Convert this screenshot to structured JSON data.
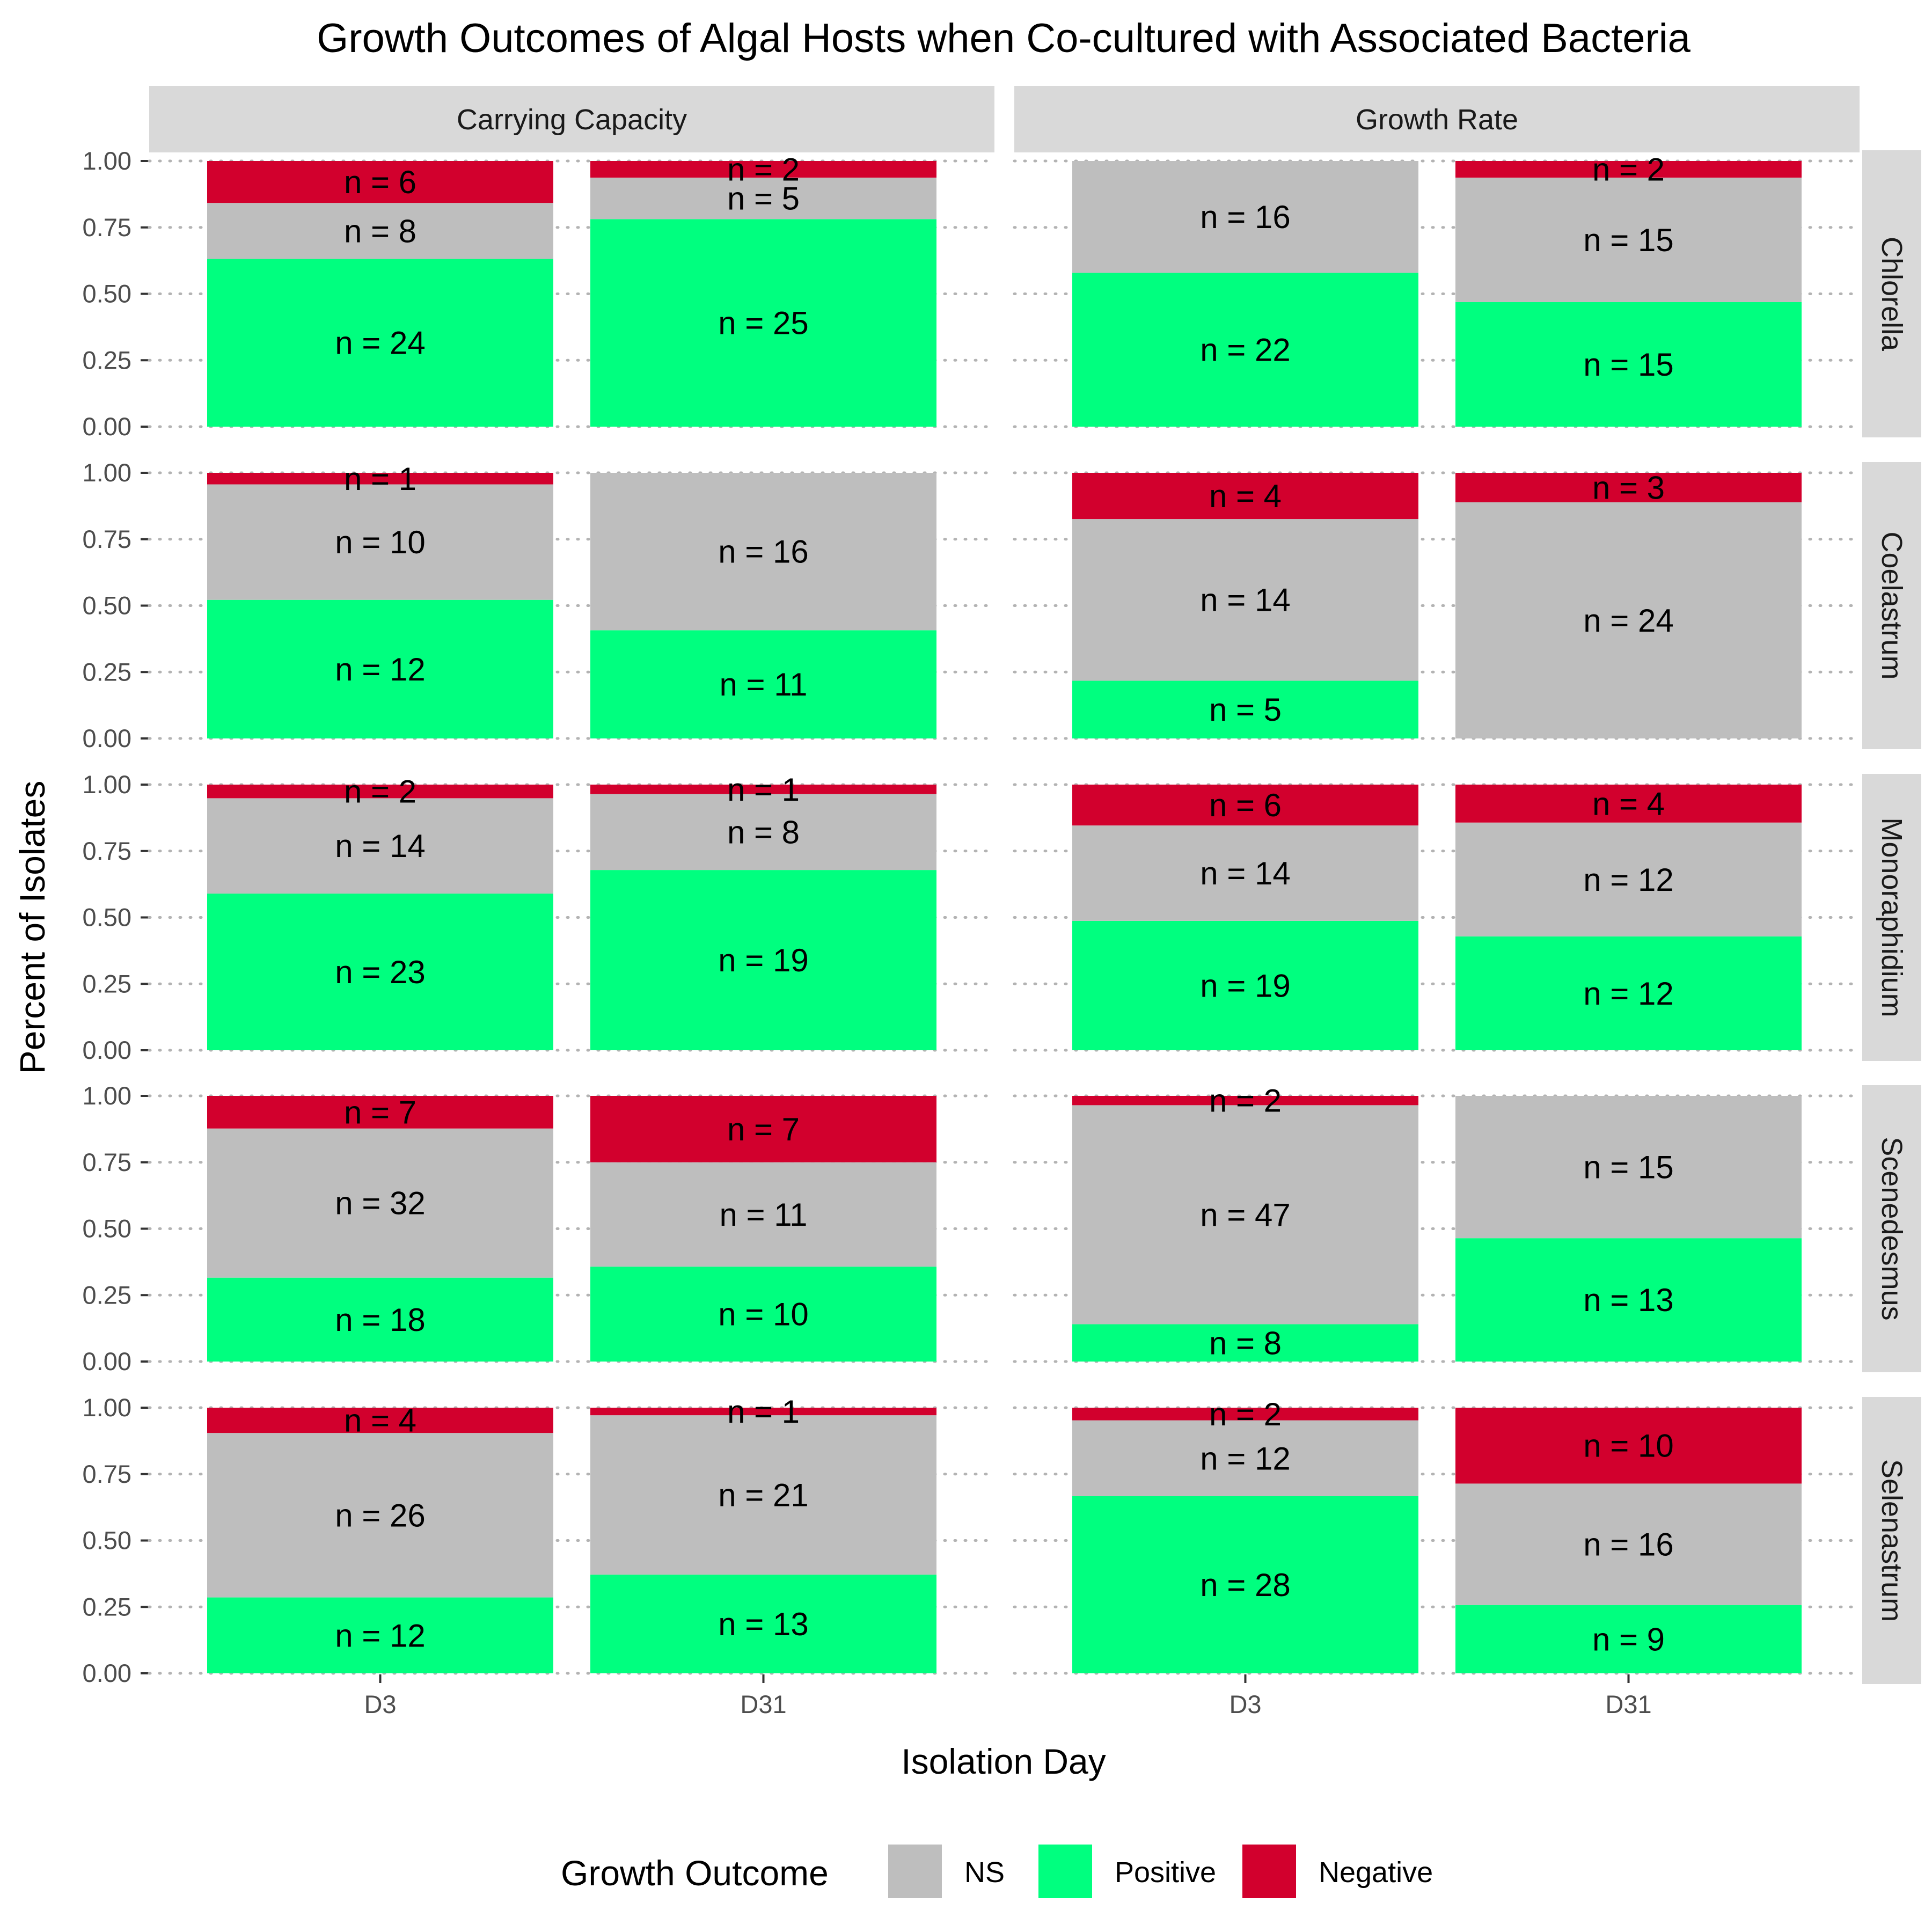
{
  "chart_data": {
    "type": "bar",
    "stacked": "percent",
    "title": "Growth Outcomes of Algal Hosts when Co-cultured with Associated Bacteria",
    "xlabel": "Isolation Day",
    "ylabel": "Percent of Isolates",
    "ylim": [
      0,
      1
    ],
    "y_ticks": [
      "0.00",
      "0.25",
      "0.50",
      "0.75",
      "1.00"
    ],
    "categories": [
      "D3",
      "D31"
    ],
    "facet_columns": [
      "Carrying Capacity",
      "Growth Rate"
    ],
    "facet_rows": [
      "Chlorella",
      "Coelastrum",
      "Monoraphidium",
      "Scenedesmus",
      "Selenastrum"
    ],
    "grid": "dotted horizontal",
    "legend": {
      "title": "Growth Outcome",
      "position": "bottom",
      "entries": [
        {
          "name": "NS",
          "color": "#BEBEBE"
        },
        {
          "name": "Positive",
          "color": "#00FF7F"
        },
        {
          "name": "Negative",
          "color": "#D2002D"
        }
      ]
    },
    "stack_order": [
      "Positive",
      "NS",
      "Negative"
    ],
    "label_prefix": "n = ",
    "panels": [
      {
        "column": "Carrying Capacity",
        "row": "Chlorella",
        "bars": [
          {
            "category": "D3",
            "Positive": 24,
            "NS": 8,
            "Negative": 6
          },
          {
            "category": "D31",
            "Positive": 25,
            "NS": 5,
            "Negative": 2
          }
        ]
      },
      {
        "column": "Growth Rate",
        "row": "Chlorella",
        "bars": [
          {
            "category": "D3",
            "Positive": 22,
            "NS": 16,
            "Negative": 0
          },
          {
            "category": "D31",
            "Positive": 15,
            "NS": 15,
            "Negative": 2
          }
        ]
      },
      {
        "column": "Carrying Capacity",
        "row": "Coelastrum",
        "bars": [
          {
            "category": "D3",
            "Positive": 12,
            "NS": 10,
            "Negative": 1
          },
          {
            "category": "D31",
            "Positive": 11,
            "NS": 16,
            "Negative": 0
          }
        ]
      },
      {
        "column": "Growth Rate",
        "row": "Coelastrum",
        "bars": [
          {
            "category": "D3",
            "Positive": 5,
            "NS": 14,
            "Negative": 4
          },
          {
            "category": "D31",
            "Positive": 0,
            "NS": 24,
            "Negative": 3
          }
        ]
      },
      {
        "column": "Carrying Capacity",
        "row": "Monoraphidium",
        "bars": [
          {
            "category": "D3",
            "Positive": 23,
            "NS": 14,
            "Negative": 2
          },
          {
            "category": "D31",
            "Positive": 19,
            "NS": 8,
            "Negative": 1
          }
        ]
      },
      {
        "column": "Growth Rate",
        "row": "Monoraphidium",
        "bars": [
          {
            "category": "D3",
            "Positive": 19,
            "NS": 14,
            "Negative": 6
          },
          {
            "category": "D31",
            "Positive": 12,
            "NS": 12,
            "Negative": 4
          }
        ]
      },
      {
        "column": "Carrying Capacity",
        "row": "Scenedesmus",
        "bars": [
          {
            "category": "D3",
            "Positive": 18,
            "NS": 32,
            "Negative": 7
          },
          {
            "category": "D31",
            "Positive": 10,
            "NS": 11,
            "Negative": 7
          }
        ]
      },
      {
        "column": "Growth Rate",
        "row": "Scenedesmus",
        "bars": [
          {
            "category": "D3",
            "Positive": 8,
            "NS": 47,
            "Negative": 2
          },
          {
            "category": "D31",
            "Positive": 13,
            "NS": 15,
            "Negative": 0
          }
        ]
      },
      {
        "column": "Carrying Capacity",
        "row": "Selenastrum",
        "bars": [
          {
            "category": "D3",
            "Positive": 12,
            "NS": 26,
            "Negative": 4
          },
          {
            "category": "D31",
            "Positive": 13,
            "NS": 21,
            "Negative": 1
          }
        ]
      },
      {
        "column": "Growth Rate",
        "row": "Selenastrum",
        "bars": [
          {
            "category": "D3",
            "Positive": 28,
            "NS": 12,
            "Negative": 2
          },
          {
            "category": "D31",
            "Positive": 9,
            "NS": 16,
            "Negative": 10
          }
        ]
      }
    ]
  }
}
